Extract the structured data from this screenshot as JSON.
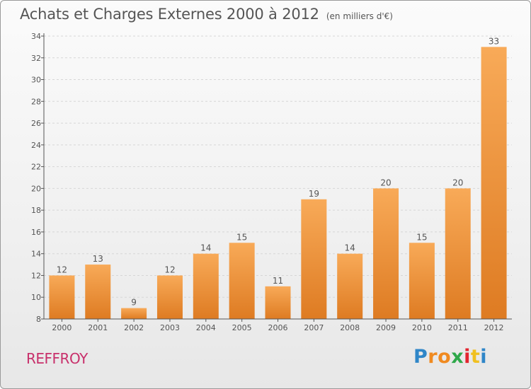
{
  "title": "Achats et Charges Externes 2000 à 2012",
  "subtitle": "(en milliers d'€)",
  "location": "REFFROY",
  "brand": {
    "letters": [
      "P",
      "r",
      "o",
      "x",
      "i",
      "t",
      "i"
    ],
    "colors": [
      "#2f86c8",
      "#f08a20",
      "#f08a20",
      "#2fa84a",
      "#e2252f",
      "#f0c020",
      "#2f86c8"
    ]
  },
  "colors": {
    "bar_light": "#f8aa58",
    "bar_dark": "#de7b22",
    "text": "#555555",
    "axis": "#555555",
    "grid": "#d6d6d6"
  },
  "chart_data": {
    "type": "bar",
    "categories": [
      "2000",
      "2001",
      "2002",
      "2003",
      "2004",
      "2005",
      "2006",
      "2007",
      "2008",
      "2009",
      "2010",
      "2011",
      "2012"
    ],
    "values": [
      12,
      13,
      9,
      12,
      14,
      15,
      11,
      19,
      14,
      20,
      15,
      20,
      33
    ],
    "title": "Achats et Charges Externes 2000 à 2012",
    "subtitle": "(en milliers d'€)",
    "xlabel": "",
    "ylabel": "",
    "ylim": [
      8,
      34
    ],
    "yticks": [
      8,
      10,
      12,
      14,
      16,
      18,
      20,
      22,
      24,
      26,
      28,
      30,
      32,
      34
    ],
    "grid": "horizontal dashed",
    "legend": "none",
    "data_labels": true
  }
}
